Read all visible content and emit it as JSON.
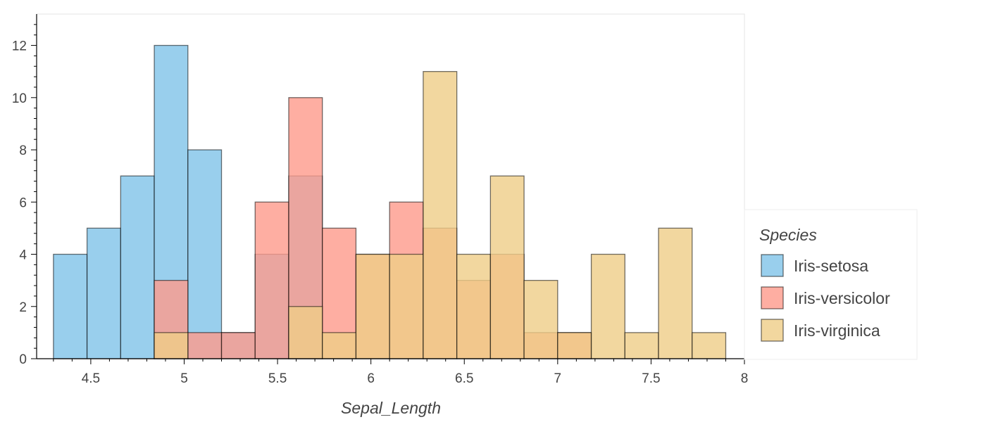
{
  "chart_data": {
    "type": "bar",
    "title": "",
    "xlabel": "Sepal_Length",
    "ylabel": "",
    "xlim": [
      4.21,
      8.0
    ],
    "ylim": [
      0,
      13.2
    ],
    "x_ticks": [
      "4.5",
      "5",
      "5.5",
      "6",
      "6.5",
      "7",
      "7.5",
      "8"
    ],
    "y_ticks": [
      "0",
      "2",
      "4",
      "6",
      "8",
      "10",
      "12"
    ],
    "bin_edges": [
      4.3,
      4.48,
      4.66,
      4.84,
      5.02,
      5.2,
      5.38,
      5.56,
      5.74,
      5.92,
      6.1,
      6.28,
      6.46,
      6.64,
      6.82,
      7.0,
      7.18,
      7.36,
      7.54,
      7.72,
      7.9
    ],
    "grid": false,
    "legend": {
      "title": "Species",
      "placement": "right"
    },
    "series": [
      {
        "name": "Iris-setosa",
        "color": "#7fc3e9",
        "values": [
          4,
          5,
          7,
          12,
          8,
          1,
          4,
          7,
          0,
          0,
          0,
          0,
          0,
          0,
          0,
          0,
          0,
          0,
          0,
          0
        ]
      },
      {
        "name": "Iris-versicolor",
        "color": "#fe9a8b",
        "values": [
          0,
          0,
          0,
          3,
          1,
          1,
          6,
          10,
          5,
          4,
          6,
          5,
          3,
          4,
          1,
          1,
          0,
          0,
          0,
          0
        ]
      },
      {
        "name": "Iris-virginica",
        "color": "#efcd87",
        "values": [
          0,
          0,
          0,
          1,
          0,
          0,
          0,
          2,
          1,
          4,
          4,
          11,
          4,
          7,
          3,
          1,
          4,
          1,
          5,
          1
        ]
      }
    ]
  }
}
